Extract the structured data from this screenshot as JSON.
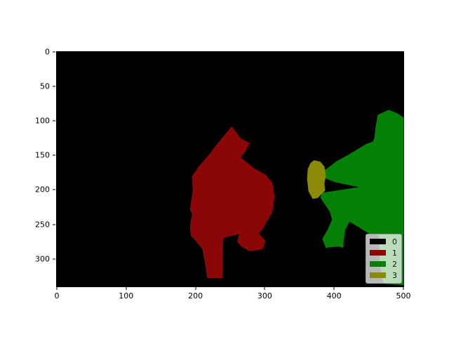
{
  "figure": {
    "background": "#ffffff"
  },
  "chart_data": {
    "type": "heatmap",
    "subtype": "segmentation-mask",
    "title": "",
    "xlabel": "",
    "ylabel": "",
    "x_range": [
      0,
      500
    ],
    "y_range": [
      0,
      340
    ],
    "y_inverted": true,
    "x_ticks": [
      0,
      100,
      200,
      300,
      400,
      500
    ],
    "y_ticks": [
      0,
      50,
      100,
      150,
      200,
      250,
      300
    ],
    "grid": false,
    "legend_position": "lower-right",
    "classes": [
      {
        "label": "0",
        "color": "#000000",
        "role": "background"
      },
      {
        "label": "1",
        "color": "#8b0707"
      },
      {
        "label": "2",
        "color": "#048104"
      },
      {
        "label": "3",
        "color": "#8b8b08"
      }
    ],
    "regions": [
      {
        "class": "1",
        "points": [
          [
            252,
            108
          ],
          [
            266,
            126
          ],
          [
            278,
            132
          ],
          [
            272,
            144
          ],
          [
            265,
            153
          ],
          [
            285,
            169
          ],
          [
            301,
            178
          ],
          [
            311,
            190
          ],
          [
            314,
            210
          ],
          [
            311,
            232
          ],
          [
            305,
            242
          ],
          [
            296,
            258
          ],
          [
            291,
            263
          ],
          [
            301,
            274
          ],
          [
            297,
            286
          ],
          [
            278,
            289
          ],
          [
            266,
            282
          ],
          [
            260,
            275
          ],
          [
            263,
            264
          ],
          [
            242,
            269
          ],
          [
            240,
            272
          ],
          [
            239,
            301
          ],
          [
            239,
            328
          ],
          [
            217,
            328
          ],
          [
            214,
            308
          ],
          [
            210,
            286
          ],
          [
            201,
            275
          ],
          [
            193,
            266
          ],
          [
            192,
            252
          ],
          [
            195,
            235
          ],
          [
            192,
            228
          ],
          [
            196,
            201
          ],
          [
            195,
            180
          ],
          [
            204,
            167
          ],
          [
            222,
            146
          ],
          [
            226,
            140
          ]
        ]
      },
      {
        "class": "2",
        "points": [
          [
            479,
            84
          ],
          [
            491,
            89
          ],
          [
            500,
            95
          ],
          [
            500,
            338
          ],
          [
            471,
            336
          ],
          [
            466,
            306
          ],
          [
            465,
            266
          ],
          [
            451,
            264
          ],
          [
            437,
            255
          ],
          [
            422,
            246
          ],
          [
            416,
            258
          ],
          [
            414,
            272
          ],
          [
            413,
            284
          ],
          [
            406,
            282
          ],
          [
            388,
            284
          ],
          [
            383,
            271
          ],
          [
            391,
            257
          ],
          [
            397,
            243
          ],
          [
            394,
            232
          ],
          [
            386,
            220
          ],
          [
            380,
            211
          ],
          [
            383,
            204
          ],
          [
            436,
            196
          ],
          [
            421,
            193
          ],
          [
            402,
            189
          ],
          [
            386,
            183
          ],
          [
            381,
            175
          ],
          [
            390,
            169
          ],
          [
            404,
            158
          ],
          [
            419,
            150
          ],
          [
            434,
            141
          ],
          [
            447,
            133
          ],
          [
            456,
            130
          ],
          [
            458,
            125
          ],
          [
            460,
            108
          ],
          [
            463,
            91
          ]
        ]
      },
      {
        "class": "3",
        "points": [
          [
            371,
            157
          ],
          [
            380,
            159
          ],
          [
            386,
            166
          ],
          [
            388,
            179
          ],
          [
            386,
            191
          ],
          [
            387,
            201
          ],
          [
            376,
            212
          ],
          [
            369,
            213
          ],
          [
            363,
            202
          ],
          [
            361,
            184
          ],
          [
            362,
            170
          ],
          [
            366,
            161
          ]
        ]
      }
    ]
  }
}
